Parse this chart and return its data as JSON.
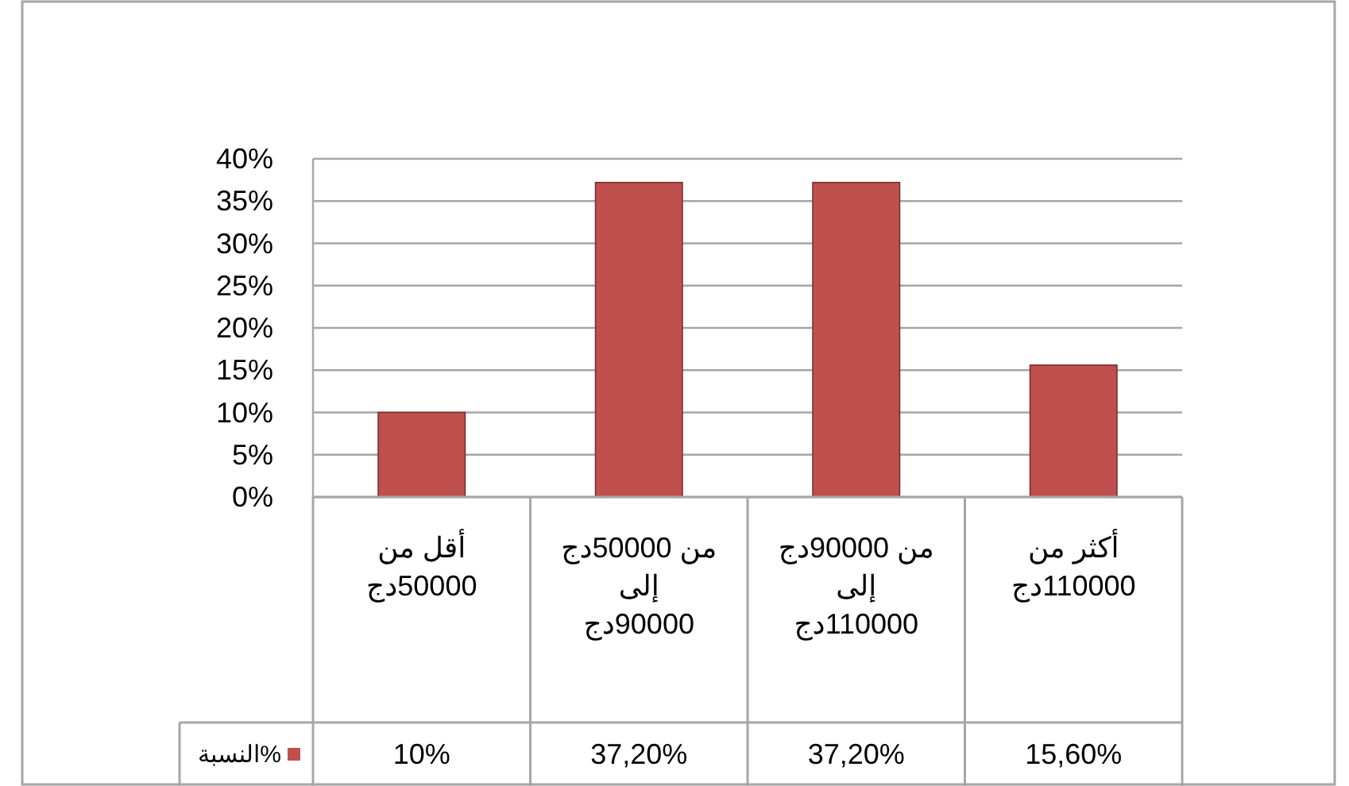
{
  "chart_data": {
    "type": "bar",
    "categories": [
      "أقل من 50000دج",
      "من 50000دج إلى 90000دج",
      "من 90000دج إلى 110000دج",
      "أكثر من 110000دج"
    ],
    "series": [
      {
        "name": "النسبة%",
        "color": "#c0504d",
        "values": [
          10,
          37.2,
          37.2,
          15.6
        ],
        "value_labels": [
          "10%",
          "37,20%",
          "37,20%",
          "15,60%"
        ]
      }
    ],
    "ylim": [
      0,
      40
    ],
    "yticks": [
      {
        "value": 0,
        "label": "0%"
      },
      {
        "value": 5,
        "label": "5%"
      },
      {
        "value": 10,
        "label": "10%"
      },
      {
        "value": 15,
        "label": "15%"
      },
      {
        "value": 20,
        "label": "20%"
      },
      {
        "value": 25,
        "label": "25%"
      },
      {
        "value": 30,
        "label": "30%"
      },
      {
        "value": 35,
        "label": "35%"
      },
      {
        "value": 40,
        "label": "40%"
      }
    ],
    "grid": "y",
    "legend": "bottom left"
  }
}
